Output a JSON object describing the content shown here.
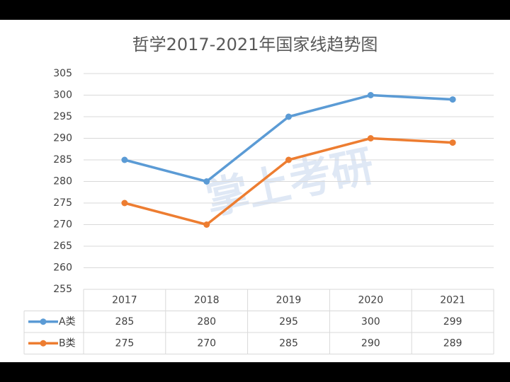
{
  "chart_data": {
    "type": "line",
    "title": "哲学2017-2021年国家线趋势图",
    "categories": [
      "2017",
      "2018",
      "2019",
      "2020",
      "2021"
    ],
    "series": [
      {
        "name": "A类",
        "color": "#5b9bd5",
        "values": [
          285,
          280,
          295,
          300,
          299
        ]
      },
      {
        "name": "B类",
        "color": "#ed7d31",
        "values": [
          275,
          270,
          285,
          290,
          289
        ]
      }
    ],
    "ylim": [
      255,
      305
    ],
    "yticks": [
      255,
      260,
      265,
      270,
      275,
      280,
      285,
      290,
      295,
      300,
      305
    ],
    "grid": true,
    "watermark": "掌上考研"
  }
}
